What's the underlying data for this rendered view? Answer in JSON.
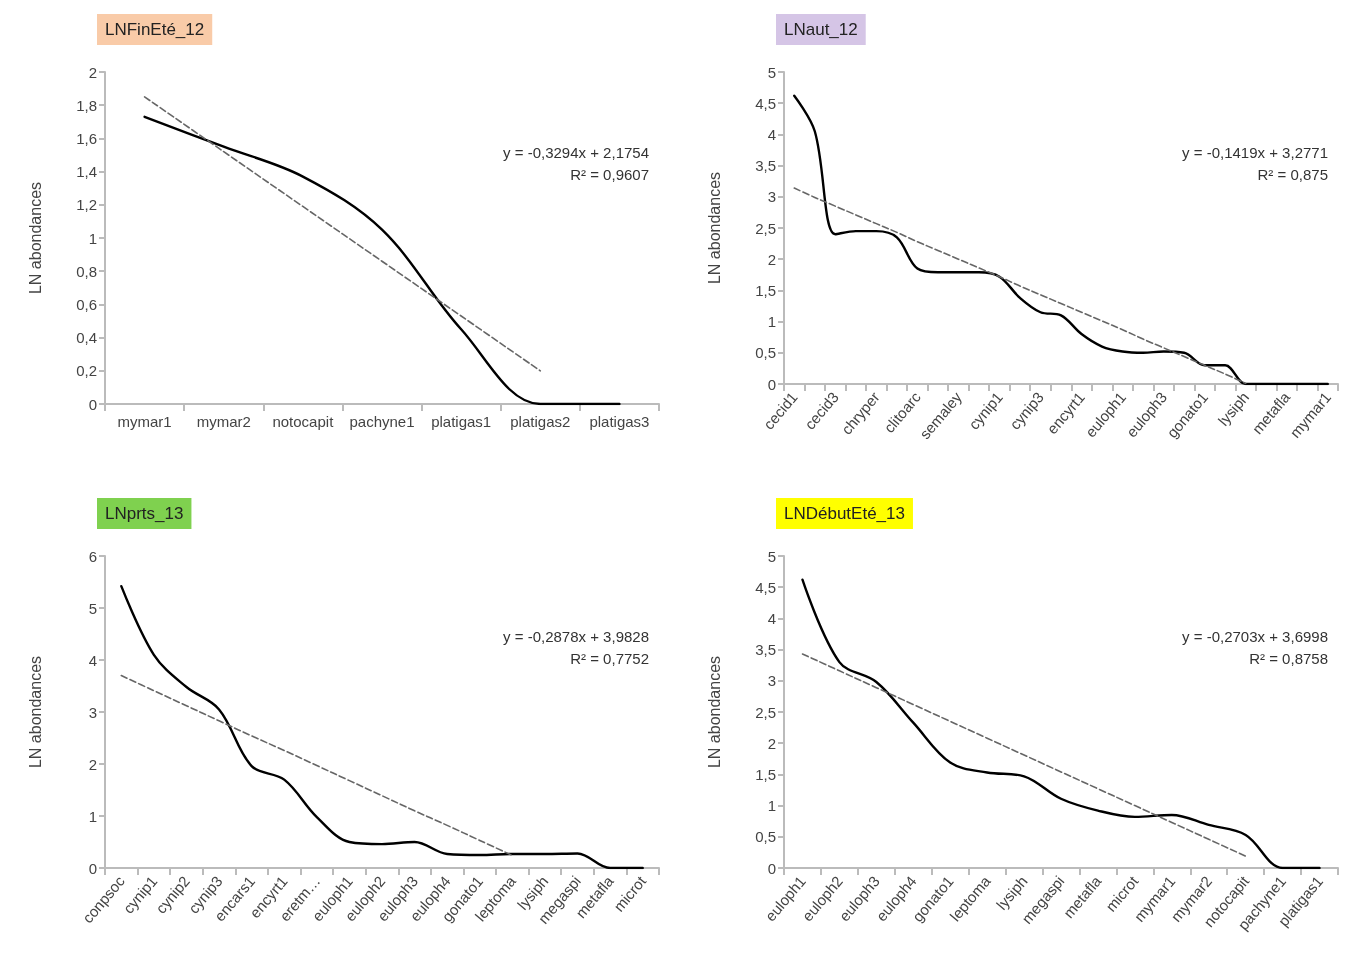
{
  "chart_data": [
    {
      "type": "line",
      "title": "LNFinEté_12",
      "ylabel": "LN abondances",
      "annotations": [
        "y = -0,3294x + 2,1754",
        "R² = 0,9607"
      ],
      "categories": [
        "mymar1",
        "mymar2",
        "notocapit",
        "pachyne1",
        "platigas1",
        "platigas2",
        "platigas3"
      ],
      "series": [
        {
          "color": "#000000",
          "line_style": "solid",
          "values": [
            1.73,
            1.55,
            1.37,
            1.05,
            0.45,
            0,
            0
          ]
        },
        {
          "color": "#666666",
          "line_style": "dashed",
          "values": [
            1.85,
            1.52,
            1.19,
            0.86,
            0.53,
            0.2,
            null
          ]
        }
      ],
      "ylim": [
        0,
        2
      ],
      "yticks": [
        0,
        {
          "value": 0.2,
          "label": "0,2"
        },
        {
          "value": 0.4,
          "label": "0,4"
        },
        {
          "value": 0.6,
          "label": "0,6"
        },
        {
          "value": 0.8,
          "label": "0,8"
        },
        1,
        {
          "value": 1.2,
          "label": "1,2"
        },
        {
          "value": 1.4,
          "label": "1,4"
        },
        {
          "value": 1.6,
          "label": "1,6"
        },
        {
          "value": 1.8,
          "label": "1,8"
        },
        2
      ],
      "grid": false,
      "marker": "none"
    },
    {
      "type": "line",
      "title": "LNaut_12",
      "ylabel": "LN abondances",
      "annotations": [
        "y = -0,1419x + 3,2771",
        "R² = 0,875"
      ],
      "categories": [
        "cecid1",
        null,
        "cecid3",
        null,
        "chryper",
        null,
        "clitoarc",
        null,
        "semaley",
        null,
        "cynip1",
        null,
        "cynip3",
        null,
        "encyrt1",
        null,
        "euloph1",
        null,
        "euloph3",
        null,
        "gonato1",
        null,
        "lysiph",
        null,
        "metafla",
        null,
        "mymar1"
      ],
      "series": [
        {
          "color": "#000000",
          "line_style": "solid",
          "values": [
            4.62,
            4.05,
            2.4,
            2.45,
            2.45,
            2.35,
            1.85,
            1.79,
            1.79,
            1.79,
            1.72,
            1.38,
            1.15,
            1.1,
            0.8,
            0.6,
            0.52,
            0.5,
            0.52,
            0.5,
            0.3,
            0.3,
            0,
            0,
            0,
            0,
            0
          ]
        },
        {
          "color": "#666666",
          "line_style": "dashed",
          "values": [
            3.14,
            2.99,
            2.85,
            2.71,
            2.57,
            2.43,
            2.28,
            2.14,
            2.0,
            1.86,
            1.72,
            1.57,
            1.43,
            1.29,
            1.15,
            1.01,
            0.87,
            0.72,
            0.58,
            0.44,
            0.3,
            0.16,
            0.01,
            null,
            null,
            null,
            null
          ]
        }
      ],
      "ylim": [
        0,
        5
      ],
      "yticks": [
        0,
        {
          "value": 0.5,
          "label": "0,5"
        },
        1,
        {
          "value": 1.5,
          "label": "1,5"
        },
        2,
        {
          "value": 2.5,
          "label": "2,5"
        },
        3,
        {
          "value": 3.5,
          "label": "3,5"
        },
        4,
        {
          "value": 4.5,
          "label": "4,5"
        },
        5
      ],
      "grid": false,
      "marker": "none"
    },
    {
      "type": "line",
      "title": "LNprts_13",
      "ylabel": "LN abondances",
      "annotations": [
        "y = -0,2878x + 3,9828",
        "R² = 0,7752"
      ],
      "categories": [
        "conpsoc",
        "cynip1",
        "cynip2",
        "cynip3",
        "encars1",
        "encyrt1",
        "eretm…",
        "euloph1",
        "euloph2",
        "euloph3",
        "euloph4",
        "gonato1",
        "leptoma",
        "lysiph",
        "megaspi",
        "metafla",
        "microt"
      ],
      "series": [
        {
          "color": "#000000",
          "line_style": "solid",
          "values": [
            5.42,
            4.1,
            3.48,
            3.05,
            1.96,
            1.7,
            0.98,
            0.5,
            0.46,
            0.5,
            0.27,
            0.25,
            0.27,
            0.27,
            0.28,
            0,
            0
          ]
        },
        {
          "color": "#666666",
          "line_style": "dashed",
          "values": [
            3.7,
            3.41,
            3.12,
            2.83,
            2.54,
            2.26,
            1.97,
            1.68,
            1.39,
            1.1,
            0.82,
            0.53,
            0.24,
            null,
            null,
            null,
            null
          ]
        }
      ],
      "ylim": [
        0,
        6
      ],
      "yticks": [
        0,
        1,
        2,
        3,
        4,
        5,
        6
      ],
      "grid": false,
      "marker": "none"
    },
    {
      "type": "line",
      "title": "LNDébutEté_13",
      "ylabel": "LN abondances",
      "annotations": [
        "y = -0,2703x + 3,6998",
        "R² = 0,8758"
      ],
      "categories": [
        "euloph1",
        "euloph2",
        "euloph3",
        "euloph4",
        "gonato1",
        "leptoma",
        "lysiph",
        "megaspi",
        "metafla",
        "microt",
        "mymar1",
        "mymar2",
        "notocapit",
        "pachyne1",
        "platigas1"
      ],
      "series": [
        {
          "color": "#000000",
          "line_style": "solid",
          "values": [
            4.62,
            3.3,
            2.98,
            2.33,
            1.69,
            1.53,
            1.47,
            1.11,
            0.92,
            0.82,
            0.85,
            0.69,
            0.53,
            0,
            0
          ]
        },
        {
          "color": "#666666",
          "line_style": "dashed",
          "values": [
            3.43,
            3.16,
            2.89,
            2.62,
            2.35,
            2.08,
            1.81,
            1.54,
            1.27,
            1.0,
            0.73,
            0.46,
            0.19,
            null,
            null
          ]
        }
      ],
      "ylim": [
        0,
        5
      ],
      "yticks": [
        0,
        {
          "value": 0.5,
          "label": "0,5"
        },
        1,
        {
          "value": 1.5,
          "label": "1,5"
        },
        2,
        {
          "value": 2.5,
          "label": "2,5"
        },
        3,
        {
          "value": 3.5,
          "label": "3,5"
        },
        4,
        {
          "value": 4.5,
          "label": "4,5"
        },
        5
      ],
      "grid": false,
      "marker": "none"
    }
  ]
}
